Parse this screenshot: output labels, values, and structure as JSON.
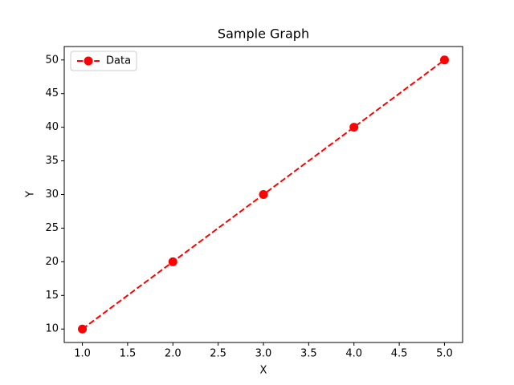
{
  "chart_data": {
    "type": "line",
    "title": "Sample Graph",
    "xlabel": "X",
    "ylabel": "Y",
    "x": [
      1,
      2,
      3,
      4,
      5
    ],
    "series": [
      {
        "name": "Data",
        "color": "red",
        "values": [
          10,
          20,
          30,
          40,
          50
        ]
      }
    ],
    "xlim": [
      0.8,
      5.2
    ],
    "xticks": [
      {
        "value": 1,
        "label": "1.0"
      },
      {
        "value": 1.5,
        "label": "1.5"
      },
      {
        "value": 2,
        "label": "2.0"
      },
      {
        "value": 2.5,
        "label": "2.5"
      },
      {
        "value": 3,
        "label": "3.0"
      },
      {
        "value": 3.5,
        "label": "3.5"
      },
      {
        "value": 4,
        "label": "4.0"
      },
      {
        "value": 4.5,
        "label": "4.5"
      },
      {
        "value": 5,
        "label": "5.0"
      }
    ],
    "ylim": [
      8,
      52
    ],
    "yticks": [
      10,
      15,
      20,
      25,
      30,
      35,
      40,
      45,
      50
    ],
    "grid": false,
    "legend": "upper left",
    "line_style": "dashed",
    "marker": "circle"
  }
}
